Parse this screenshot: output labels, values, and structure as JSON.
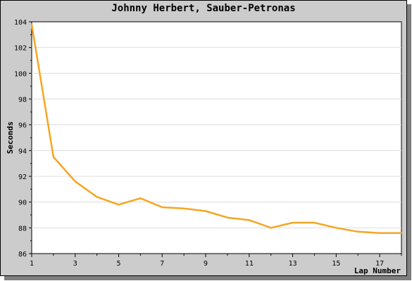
{
  "chart_data": {
    "type": "line",
    "title": "Johnny Herbert, Sauber-Petronas",
    "xlabel": "Lap Number",
    "ylabel": "Seconds",
    "xlim": [
      1,
      18
    ],
    "ylim": [
      86,
      104
    ],
    "x_ticks": [
      1,
      3,
      5,
      7,
      9,
      11,
      13,
      15,
      17
    ],
    "y_ticks": [
      86,
      88,
      90,
      92,
      94,
      96,
      98,
      100,
      102,
      104
    ],
    "grid": true,
    "line_color": "#f5a623",
    "series": [
      {
        "x": [
          1,
          2,
          3,
          4,
          5,
          6,
          7,
          8,
          9,
          10,
          11,
          12,
          13,
          14,
          15,
          16,
          17,
          18
        ],
        "values": [
          103.8,
          93.5,
          91.6,
          90.4,
          89.8,
          90.3,
          89.6,
          89.5,
          89.3,
          88.8,
          88.6,
          88.0,
          88.4,
          88.4,
          88.0,
          87.7,
          87.6,
          87.6
        ]
      }
    ]
  }
}
